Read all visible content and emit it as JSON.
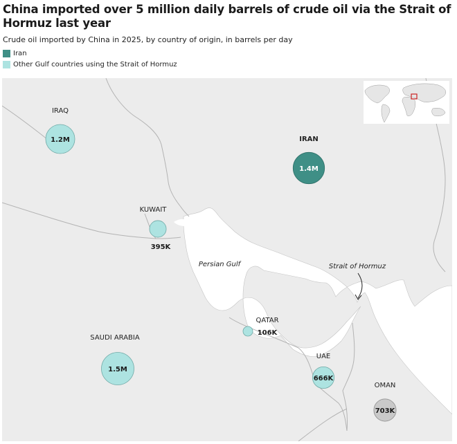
{
  "title": "China imported over 5 million daily barrels of crude oil via the Strait of Hormuz last year",
  "subtitle": "Crude oil imported by China in 2025, by country of origin, in barrels per day",
  "legend": [
    {
      "label": "Iran",
      "color": "#3f8f86"
    },
    {
      "label": "Other Gulf countries using the Strait of Hormuz",
      "color": "#ade3e1"
    }
  ],
  "colors": {
    "land": "#ececec",
    "water": "#ffffff",
    "border": "#b9b9b9",
    "inset_box": "#cc2222",
    "oman": "#c9c9c9"
  },
  "countries": [
    {
      "id": "iraq",
      "name": "IRAQ",
      "value_label": "1.2M",
      "value_bpd": 1200000,
      "category": "Other Gulf countries using the Strait of Hormuz"
    },
    {
      "id": "iran",
      "name": "IRAN",
      "value_label": "1.4M",
      "value_bpd": 1400000,
      "category": "Iran"
    },
    {
      "id": "kuwait",
      "name": "KUWAIT",
      "value_label": "395K",
      "value_bpd": 395000,
      "category": "Other Gulf countries using the Strait of Hormuz"
    },
    {
      "id": "qatar",
      "name": "QATAR",
      "value_label": "106K",
      "value_bpd": 106000,
      "category": "Other Gulf countries using the Strait of Hormuz"
    },
    {
      "id": "saudi",
      "name": "SAUDI ARABIA",
      "value_label": "1.5M",
      "value_bpd": 1500000,
      "category": "Other Gulf countries using the Strait of Hormuz"
    },
    {
      "id": "uae",
      "name": "UAE",
      "value_label": "666K",
      "value_bpd": 666000,
      "category": "Other Gulf countries using the Strait of Hormuz"
    },
    {
      "id": "oman",
      "name": "OMAN",
      "value_label": "703K",
      "value_bpd": 703000,
      "category": "none"
    }
  ],
  "water_labels": {
    "persian_gulf": "Persian Gulf",
    "hormuz": "Strait of Hormuz"
  }
}
